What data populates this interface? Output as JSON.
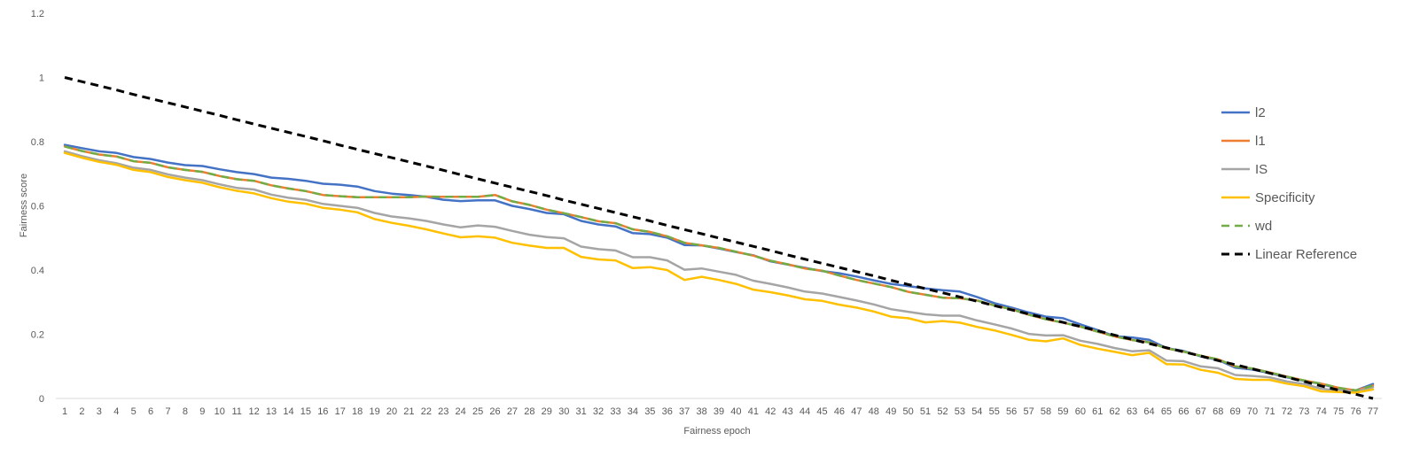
{
  "chart_data": {
    "type": "line",
    "title": "",
    "xlabel": "Fairness epoch",
    "ylabel": "Fairness score",
    "ylim": [
      0,
      1.2
    ],
    "yticks": [
      "0",
      "0.2",
      "0.4",
      "0.6",
      "0.8",
      "1",
      "1.2"
    ],
    "grid": false,
    "legend_position": "right",
    "x": [
      1,
      2,
      3,
      4,
      5,
      6,
      7,
      8,
      9,
      10,
      11,
      12,
      13,
      14,
      15,
      16,
      17,
      18,
      19,
      20,
      21,
      22,
      23,
      24,
      25,
      26,
      27,
      28,
      29,
      30,
      31,
      32,
      33,
      34,
      35,
      36,
      37,
      38,
      39,
      40,
      41,
      42,
      43,
      44,
      45,
      46,
      47,
      48,
      49,
      50,
      51,
      52,
      53,
      54,
      55,
      56,
      57,
      58,
      59,
      60,
      61,
      62,
      63,
      64,
      65,
      66,
      67,
      68,
      69,
      70,
      71,
      72,
      73,
      74,
      75,
      76,
      77
    ],
    "series": [
      {
        "name": "l2",
        "color": "#4472C4",
        "dash": "solid",
        "values": [
          0.79,
          0.78,
          0.77,
          0.765,
          0.752,
          0.746,
          0.735,
          0.727,
          0.724,
          0.714,
          0.705,
          0.699,
          0.688,
          0.684,
          0.678,
          0.669,
          0.666,
          0.66,
          0.646,
          0.638,
          0.634,
          0.628,
          0.619,
          0.615,
          0.617,
          0.617,
          0.6,
          0.59,
          0.578,
          0.574,
          0.553,
          0.542,
          0.536,
          0.515,
          0.512,
          0.501,
          0.478,
          0.477,
          0.467,
          0.456,
          0.446,
          0.427,
          0.417,
          0.407,
          0.397,
          0.39,
          0.38,
          0.368,
          0.357,
          0.35,
          0.343,
          0.337,
          0.333,
          0.316,
          0.297,
          0.283,
          0.268,
          0.255,
          0.25,
          0.231,
          0.213,
          0.194,
          0.19,
          0.183,
          0.157,
          0.148,
          0.131,
          0.12,
          0.096,
          0.09,
          0.079,
          0.066,
          0.055,
          0.045,
          0.03,
          0.025,
          0.045
        ]
      },
      {
        "name": "l1",
        "color": "#ED7D31",
        "dash": "solid",
        "values": [
          0.785,
          0.771,
          0.76,
          0.754,
          0.739,
          0.734,
          0.72,
          0.712,
          0.706,
          0.693,
          0.683,
          0.678,
          0.664,
          0.654,
          0.646,
          0.634,
          0.63,
          0.627,
          0.627,
          0.627,
          0.627,
          0.629,
          0.628,
          0.628,
          0.628,
          0.634,
          0.614,
          0.603,
          0.588,
          0.577,
          0.565,
          0.552,
          0.546,
          0.527,
          0.519,
          0.505,
          0.485,
          0.477,
          0.469,
          0.457,
          0.445,
          0.429,
          0.418,
          0.405,
          0.398,
          0.383,
          0.369,
          0.358,
          0.347,
          0.332,
          0.323,
          0.314,
          0.312,
          0.305,
          0.29,
          0.278,
          0.261,
          0.247,
          0.236,
          0.224,
          0.208,
          0.193,
          0.182,
          0.175,
          0.156,
          0.146,
          0.133,
          0.122,
          0.1,
          0.093,
          0.081,
          0.068,
          0.056,
          0.046,
          0.033,
          0.025,
          0.04
        ]
      },
      {
        "name": "IS",
        "color": "#A5A5A5",
        "dash": "solid",
        "values": [
          0.77,
          0.755,
          0.742,
          0.733,
          0.719,
          0.712,
          0.698,
          0.688,
          0.68,
          0.667,
          0.656,
          0.651,
          0.635,
          0.625,
          0.619,
          0.606,
          0.6,
          0.594,
          0.578,
          0.567,
          0.561,
          0.553,
          0.542,
          0.533,
          0.539,
          0.535,
          0.522,
          0.51,
          0.503,
          0.499,
          0.473,
          0.465,
          0.461,
          0.44,
          0.44,
          0.43,
          0.401,
          0.405,
          0.395,
          0.385,
          0.367,
          0.357,
          0.346,
          0.333,
          0.327,
          0.316,
          0.305,
          0.293,
          0.278,
          0.27,
          0.262,
          0.258,
          0.258,
          0.243,
          0.231,
          0.218,
          0.201,
          0.196,
          0.197,
          0.18,
          0.17,
          0.157,
          0.147,
          0.15,
          0.118,
          0.116,
          0.1,
          0.094,
          0.073,
          0.07,
          0.066,
          0.053,
          0.045,
          0.03,
          0.025,
          0.022,
          0.035
        ]
      },
      {
        "name": "Specificity",
        "color": "#FFC000",
        "dash": "solid",
        "values": [
          0.765,
          0.75,
          0.737,
          0.728,
          0.712,
          0.705,
          0.69,
          0.68,
          0.672,
          0.658,
          0.647,
          0.639,
          0.624,
          0.613,
          0.607,
          0.594,
          0.588,
          0.58,
          0.559,
          0.547,
          0.538,
          0.527,
          0.514,
          0.502,
          0.505,
          0.501,
          0.485,
          0.476,
          0.469,
          0.469,
          0.441,
          0.433,
          0.43,
          0.406,
          0.409,
          0.4,
          0.369,
          0.379,
          0.369,
          0.357,
          0.339,
          0.331,
          0.321,
          0.309,
          0.304,
          0.292,
          0.283,
          0.271,
          0.255,
          0.25,
          0.237,
          0.241,
          0.236,
          0.223,
          0.212,
          0.198,
          0.183,
          0.178,
          0.187,
          0.167,
          0.155,
          0.145,
          0.135,
          0.142,
          0.107,
          0.106,
          0.089,
          0.08,
          0.061,
          0.058,
          0.058,
          0.046,
          0.038,
          0.022,
          0.02,
          0.018,
          0.028
        ]
      },
      {
        "name": "wd",
        "color": "#70AD47",
        "dash": "dashed",
        "values": [
          0.785,
          0.771,
          0.76,
          0.754,
          0.739,
          0.734,
          0.72,
          0.712,
          0.706,
          0.693,
          0.683,
          0.678,
          0.664,
          0.654,
          0.646,
          0.634,
          0.63,
          0.627,
          0.627,
          0.627,
          0.627,
          0.629,
          0.628,
          0.628,
          0.628,
          0.634,
          0.614,
          0.603,
          0.588,
          0.577,
          0.565,
          0.552,
          0.546,
          0.527,
          0.519,
          0.505,
          0.485,
          0.477,
          0.469,
          0.457,
          0.445,
          0.429,
          0.418,
          0.405,
          0.398,
          0.383,
          0.369,
          0.358,
          0.347,
          0.332,
          0.323,
          0.314,
          0.312,
          0.305,
          0.29,
          0.278,
          0.261,
          0.247,
          0.236,
          0.224,
          0.208,
          0.193,
          0.182,
          0.175,
          0.156,
          0.146,
          0.133,
          0.122,
          0.1,
          0.093,
          0.081,
          0.068,
          0.056,
          0.046,
          0.033,
          0.025,
          0.04
        ]
      },
      {
        "name": "Linear Reference",
        "color": "#000000",
        "dash": "dashed",
        "values": [
          1,
          0.987,
          0.974,
          0.961,
          0.947,
          0.934,
          0.921,
          0.908,
          0.895,
          0.882,
          0.868,
          0.855,
          0.842,
          0.829,
          0.816,
          0.803,
          0.789,
          0.776,
          0.763,
          0.75,
          0.737,
          0.724,
          0.711,
          0.697,
          0.684,
          0.671,
          0.658,
          0.645,
          0.632,
          0.618,
          0.605,
          0.592,
          0.579,
          0.566,
          0.553,
          0.539,
          0.526,
          0.513,
          0.5,
          0.487,
          0.474,
          0.461,
          0.447,
          0.434,
          0.421,
          0.408,
          0.395,
          0.382,
          0.368,
          0.355,
          0.342,
          0.329,
          0.316,
          0.303,
          0.289,
          0.276,
          0.263,
          0.25,
          0.237,
          0.224,
          0.211,
          0.197,
          0.184,
          0.171,
          0.158,
          0.145,
          0.132,
          0.118,
          0.105,
          0.092,
          0.079,
          0.066,
          0.053,
          0.039,
          0.026,
          0.013,
          0
        ]
      }
    ]
  }
}
